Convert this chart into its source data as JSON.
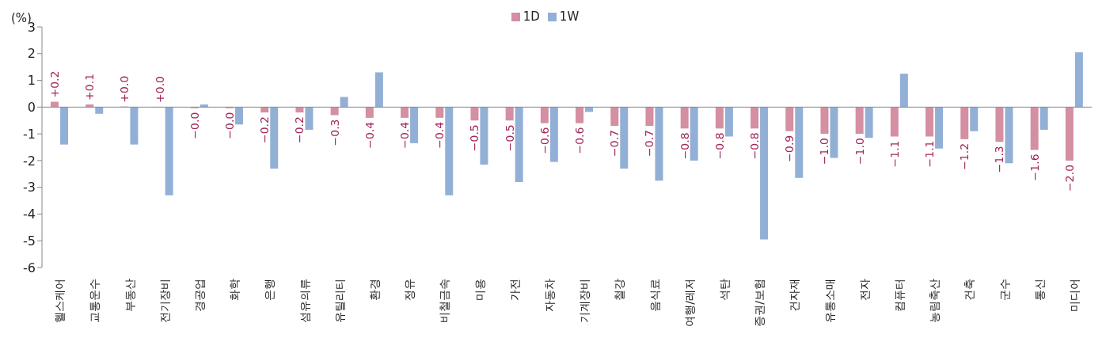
{
  "chart_data": {
    "type": "bar",
    "ylabel": "(%)",
    "categories": [
      "헬스케어",
      "교통운수",
      "부동산",
      "전기장비",
      "경공업",
      "화학",
      "은행",
      "섬유의류",
      "유틸리티",
      "환경",
      "정유",
      "비철금속",
      "미용",
      "가전",
      "자동차",
      "기계장비",
      "철강",
      "음식료",
      "여행/레저",
      "석탄",
      "증권/보험",
      "건자재",
      "유통소매",
      "전자",
      "컴퓨터",
      "농림축산",
      "건축",
      "군수",
      "통신",
      "미디어"
    ],
    "series": [
      {
        "name": "1D",
        "color": "#d48fa2",
        "values": [
          0.2,
          0.1,
          0.02,
          0.01,
          -0.04,
          -0.04,
          -0.2,
          -0.2,
          -0.3,
          -0.4,
          -0.4,
          -0.4,
          -0.5,
          -0.5,
          -0.6,
          -0.6,
          -0.7,
          -0.7,
          -0.8,
          -0.8,
          -0.8,
          -0.9,
          -1.0,
          -1.0,
          -1.1,
          -1.1,
          -1.2,
          -1.3,
          -1.6,
          -2.0
        ],
        "value_labels": [
          "+0.2",
          "+0.1",
          "+0.0",
          "+0.0",
          "−0.0",
          "−0.0",
          "−0.2",
          "−0.2",
          "−0.3",
          "−0.4",
          "−0.4",
          "−0.4",
          "−0.5",
          "−0.5",
          "−0.6",
          "−0.6",
          "−0.7",
          "−0.7",
          "−0.8",
          "−0.8",
          "−0.8",
          "−0.9",
          "−1.0",
          "−1.0",
          "−1.1",
          "−1.1",
          "−1.2",
          "−1.3",
          "−1.6",
          "−2.0"
        ]
      },
      {
        "name": "1W",
        "color": "#92b0d6",
        "values": [
          -1.4,
          -0.25,
          -1.4,
          -3.3,
          0.1,
          -0.65,
          -2.3,
          -0.85,
          0.38,
          1.3,
          -1.35,
          -3.3,
          -2.15,
          -2.8,
          -2.05,
          -0.18,
          -2.3,
          -2.75,
          -2.0,
          -1.1,
          -4.95,
          -2.65,
          -1.9,
          -1.15,
          1.25,
          -1.55,
          -0.9,
          -2.1,
          -0.85,
          2.05
        ]
      }
    ],
    "ylim": [
      -6,
      3
    ],
    "yticks": [
      -6,
      -5,
      -4,
      -3,
      -2,
      -1,
      0,
      1,
      2,
      3
    ],
    "legend": "top"
  }
}
